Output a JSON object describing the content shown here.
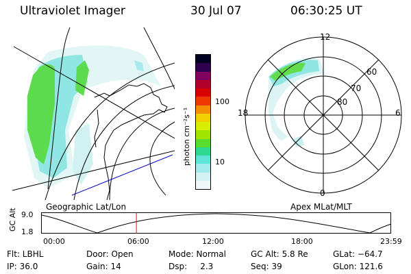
{
  "header": {
    "title": "Ultraviolet Imager",
    "date": "30 Jul 07",
    "time": "06:30:25 UT"
  },
  "left_panel": {
    "caption": "Geographic Lat/Lon"
  },
  "right_panel": {
    "caption": "Apex MLat/MLT",
    "mlt_labels": [
      "12",
      "18",
      "6",
      "0"
    ],
    "lat_labels": [
      "60",
      "70",
      "80"
    ]
  },
  "colorbar": {
    "unit_label": "photon cm⁻²s⁻¹",
    "ticks": [
      "100",
      "10"
    ],
    "colors": [
      "#000020",
      "#300050",
      "#800060",
      "#b0002a",
      "#d80000",
      "#ee3a00",
      "#f49000",
      "#f0d000",
      "#d8ee00",
      "#a0e400",
      "#58dc30",
      "#30d890",
      "#60e4d8",
      "#a0ecec",
      "#d4f2f2",
      "#eef8f8"
    ]
  },
  "altitude_plot": {
    "ylabel": "GC Alt",
    "y_max": "9.0",
    "y_min": "1.8",
    "x_ticks": [
      "00:00",
      "06:00",
      "12:00",
      "18:00",
      "23:59"
    ],
    "marker_hour": 6.5
  },
  "info": {
    "flt": "Flt: LBHL",
    "door": "Door: Open",
    "mode": "Mode: Normal",
    "gcalt": "GC Alt: 5.8 Re",
    "glat": "GLat: −64.7",
    "ip": "IP: 36.0",
    "gain": "Gain: 14",
    "dsp": "Dsp:     2.3",
    "seq": "Seq: 39",
    "glon": "GLon: 121.6"
  }
}
